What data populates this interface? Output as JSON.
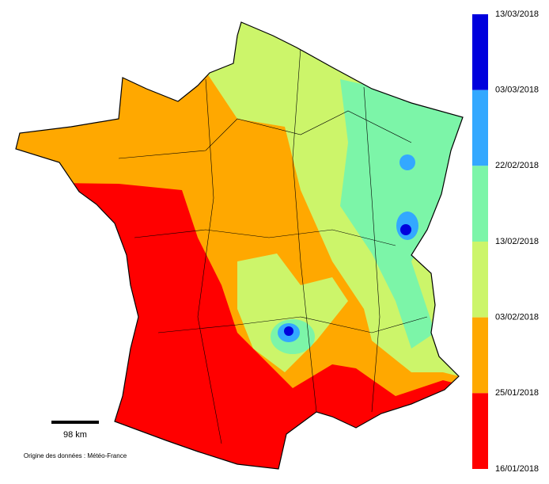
{
  "legend": {
    "labels": [
      "13/03/2018",
      "03/03/2018",
      "22/02/2018",
      "13/02/2018",
      "03/02/2018",
      "25/01/2018",
      "16/01/2018"
    ],
    "colors": [
      "#0000dd",
      "#33a8ff",
      "#7cf5a8",
      "#ccf56a",
      "#ffa800",
      "#ff0000"
    ]
  },
  "scale": {
    "label": "98 km"
  },
  "source": "Origine des données : Météo-France"
}
